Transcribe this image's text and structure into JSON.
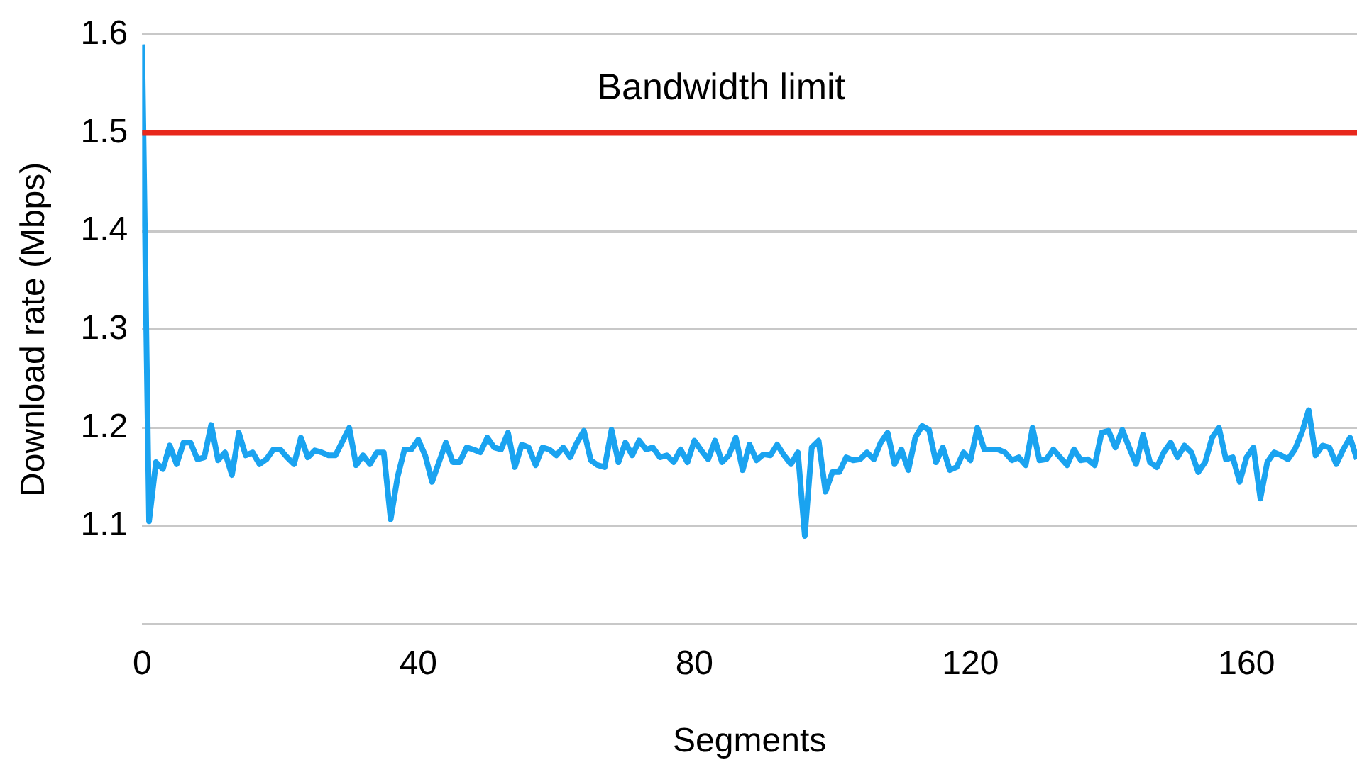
{
  "chart_data": {
    "type": "line",
    "xlabel": "Segments",
    "ylabel": "Download rate (Mbps)",
    "xlim": [
      0,
      176
    ],
    "xticks": [
      0,
      40,
      80,
      120,
      160
    ],
    "ylim": [
      1,
      1.6
    ],
    "yticks": [
      {
        "value": 1,
        "label": null
      },
      1.1,
      1.2,
      1.3,
      1.4,
      1.5,
      1.6
    ],
    "grid": "y",
    "legend": false,
    "marker": "none",
    "line_style": "solid",
    "ref_lines": [
      {
        "axis": "y",
        "value": 1.5,
        "label": "Bandwidth limit",
        "color": "#e8281c"
      }
    ],
    "series": [
      {
        "color": "#1aa3f0",
        "x": [
          0,
          1,
          2,
          3,
          4,
          5,
          6,
          7,
          8,
          9,
          10,
          11,
          12,
          13,
          14,
          15,
          16,
          17,
          18,
          19,
          20,
          21,
          22,
          23,
          24,
          25,
          26,
          27,
          28,
          29,
          30,
          31,
          32,
          33,
          34,
          35,
          36,
          37,
          38,
          39,
          40,
          41,
          42,
          43,
          44,
          45,
          46,
          47,
          48,
          49,
          50,
          51,
          52,
          53,
          54,
          55,
          56,
          57,
          58,
          59,
          60,
          61,
          62,
          63,
          64,
          65,
          66,
          67,
          68,
          69,
          70,
          71,
          72,
          73,
          74,
          75,
          76,
          77,
          78,
          79,
          80,
          81,
          82,
          83,
          84,
          85,
          86,
          87,
          88,
          89,
          90,
          91,
          92,
          93,
          94,
          95,
          96,
          97,
          98,
          99,
          100,
          101,
          102,
          103,
          104,
          105,
          106,
          107,
          108,
          109,
          110,
          111,
          112,
          113,
          114,
          115,
          116,
          117,
          118,
          119,
          120,
          121,
          122,
          123,
          124,
          125,
          126,
          127,
          128,
          129,
          130,
          131,
          132,
          133,
          134,
          135,
          136,
          137,
          138,
          139,
          140,
          141,
          142,
          143,
          144,
          145,
          146,
          147,
          148,
          149,
          150,
          151,
          152,
          153,
          154,
          155,
          156,
          157,
          158,
          159,
          160,
          161,
          162,
          163,
          164,
          165,
          166,
          167,
          168,
          169,
          170,
          171,
          172,
          173,
          174,
          175,
          176
        ],
        "values": [
          1.59,
          1.105,
          1.165,
          1.158,
          1.182,
          1.163,
          1.185,
          1.185,
          1.168,
          1.17,
          1.203,
          1.167,
          1.175,
          1.152,
          1.195,
          1.172,
          1.175,
          1.163,
          1.168,
          1.178,
          1.178,
          1.17,
          1.163,
          1.19,
          1.17,
          1.177,
          1.175,
          1.172,
          1.172,
          1.186,
          1.2,
          1.162,
          1.172,
          1.163,
          1.175,
          1.175,
          1.107,
          1.15,
          1.178,
          1.178,
          1.188,
          1.172,
          1.145,
          1.165,
          1.185,
          1.165,
          1.165,
          1.18,
          1.178,
          1.175,
          1.19,
          1.18,
          1.178,
          1.195,
          1.16,
          1.183,
          1.18,
          1.162,
          1.18,
          1.178,
          1.172,
          1.18,
          1.17,
          1.185,
          1.197,
          1.167,
          1.162,
          1.16,
          1.198,
          1.165,
          1.185,
          1.172,
          1.187,
          1.178,
          1.18,
          1.17,
          1.172,
          1.165,
          1.178,
          1.165,
          1.187,
          1.177,
          1.168,
          1.187,
          1.165,
          1.172,
          1.19,
          1.157,
          1.183,
          1.167,
          1.173,
          1.172,
          1.183,
          1.172,
          1.163,
          1.175,
          1.09,
          1.18,
          1.187,
          1.135,
          1.155,
          1.155,
          1.17,
          1.167,
          1.168,
          1.175,
          1.168,
          1.185,
          1.195,
          1.163,
          1.178,
          1.157,
          1.19,
          1.202,
          1.198,
          1.165,
          1.18,
          1.157,
          1.16,
          1.175,
          1.167,
          1.2,
          1.178,
          1.178,
          1.178,
          1.175,
          1.167,
          1.17,
          1.162,
          1.2,
          1.167,
          1.168,
          1.178,
          1.17,
          1.162,
          1.178,
          1.167,
          1.168,
          1.162,
          1.195,
          1.197,
          1.18,
          1.198,
          1.18,
          1.163,
          1.193,
          1.165,
          1.16,
          1.175,
          1.185,
          1.17,
          1.182,
          1.175,
          1.155,
          1.165,
          1.19,
          1.2,
          1.168,
          1.17,
          1.145,
          1.17,
          1.18,
          1.128,
          1.165,
          1.175,
          1.172,
          1.168,
          1.178,
          1.195,
          1.218,
          1.172,
          1.182,
          1.18,
          1.163,
          1.178,
          1.19,
          1.168
        ]
      }
    ]
  }
}
